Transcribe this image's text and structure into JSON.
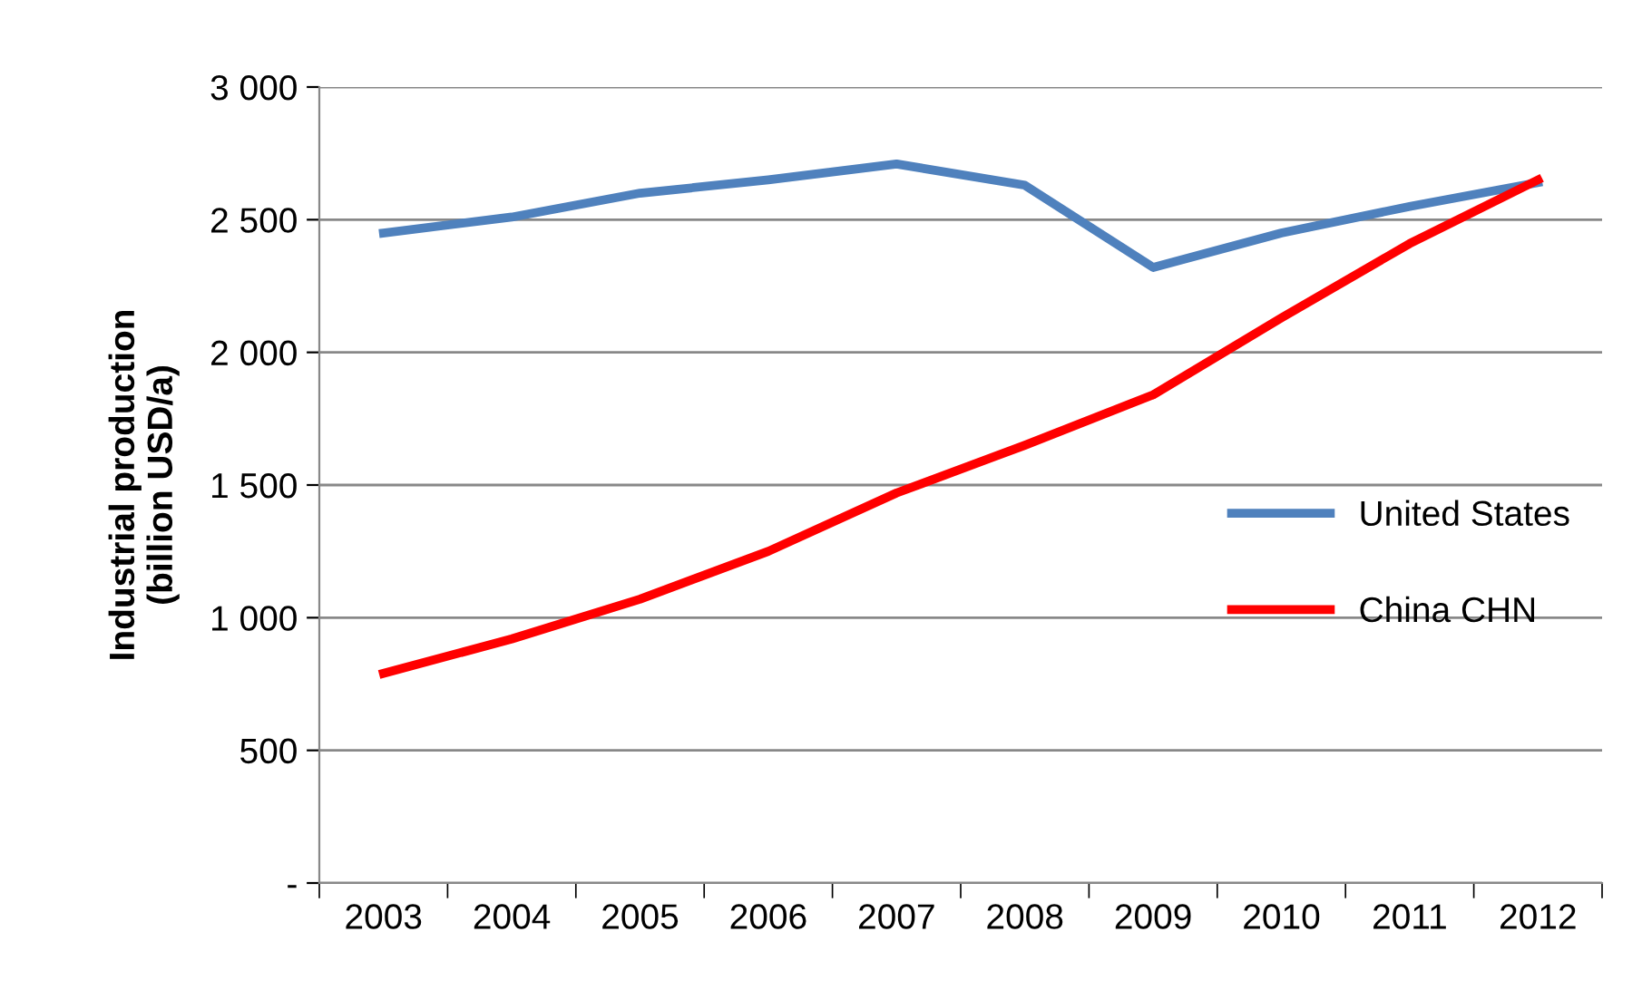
{
  "chart_data": {
    "type": "line",
    "ylabel": "Industrial production\n(billion USD/a)",
    "categories": [
      "2003",
      "2004",
      "2005",
      "2006",
      "2007",
      "2008",
      "2009",
      "2010",
      "2011",
      "2012"
    ],
    "series": [
      {
        "name": "United States",
        "color": "#4f81bd",
        "values": [
          2450,
          2510,
          2600,
          2650,
          2710,
          2630,
          2320,
          2450,
          2550,
          2640
        ]
      },
      {
        "name": "China CHN",
        "color": "#ff0000",
        "values": [
          790,
          920,
          1070,
          1250,
          1470,
          1650,
          1840,
          2130,
          2410,
          2650
        ]
      }
    ],
    "ylim": [
      0,
      3000
    ],
    "yticks": [
      {
        "value": 0,
        "label": "-"
      },
      {
        "value": 500,
        "label": "500"
      },
      {
        "value": 1000,
        "label": "1 000"
      },
      {
        "value": 1500,
        "label": "1 500"
      },
      {
        "value": 2000,
        "label": "2 000"
      },
      {
        "value": 2500,
        "label": "2 500"
      },
      {
        "value": 3000,
        "label": "3 000"
      }
    ],
    "grid": "y",
    "legend": "right",
    "marker": "none",
    "line_style": "solid"
  }
}
